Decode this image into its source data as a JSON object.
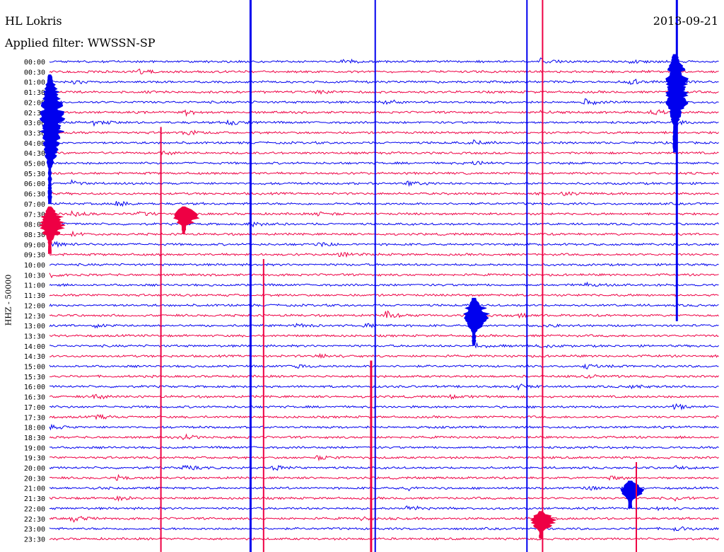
{
  "header": {
    "station": "HL Lokris",
    "date": "2013-09-21",
    "filter_label": "Applied filter: WWSSN-SP"
  },
  "channel_label": "HHZ - 50000",
  "colors": {
    "trace_a": "#0000ee",
    "trace_b": "#ee0044",
    "text": "#000000",
    "background": "#ffffff"
  },
  "chart_data": {
    "type": "line",
    "title": "",
    "xlabel": "",
    "ylabel": "HHZ - 50000",
    "row_labels": [
      "00:00",
      "00:30",
      "01:00",
      "01:30",
      "02:00",
      "02:30",
      "03:00",
      "03:30",
      "04:00",
      "04:30",
      "05:00",
      "05:30",
      "06:00",
      "06:30",
      "07:00",
      "07:30",
      "08:00",
      "08:30",
      "09:00",
      "09:30",
      "10:00",
      "10:30",
      "11:00",
      "11:30",
      "12:00",
      "12:30",
      "13:00",
      "13:30",
      "14:00",
      "14:30",
      "15:00",
      "15:30",
      "16:00",
      "16:30",
      "17:00",
      "17:30",
      "18:00",
      "18:30",
      "19:00",
      "19:30",
      "20:00",
      "20:30",
      "21:00",
      "21:30",
      "22:00",
      "22:30",
      "23:00",
      "23:30"
    ],
    "row_colors": "alternating trace_a / trace_b",
    "minutes_per_row": 30,
    "grid": false,
    "events": [
      {
        "row": 0,
        "minute": 13,
        "amp": 6
      },
      {
        "row": 0,
        "minute": 22,
        "amp": 5
      },
      {
        "row": 0,
        "minute": 26,
        "amp": 3
      },
      {
        "row": 1,
        "minute": 4,
        "amp": 3
      },
      {
        "row": 2,
        "minute": 1,
        "amp": 3
      },
      {
        "row": 2,
        "minute": 26,
        "amp": 5
      },
      {
        "row": 3,
        "minute": 12,
        "amp": 4
      },
      {
        "row": 4,
        "minute": 15,
        "amp": 4
      },
      {
        "row": 4,
        "minute": 24,
        "amp": 5
      },
      {
        "row": 5,
        "minute": 6,
        "amp": 5
      },
      {
        "row": 5,
        "minute": 27,
        "amp": 5
      },
      {
        "row": 5,
        "minute": 22,
        "amp": 3
      },
      {
        "row": 6,
        "minute": 8,
        "amp": 5
      },
      {
        "row": 6,
        "minute": 2,
        "amp": 5
      },
      {
        "row": 6,
        "minute": 28,
        "amp": 5
      },
      {
        "row": 7,
        "minute": 6,
        "amp": 4
      },
      {
        "row": 8,
        "minute": 19,
        "amp": 4
      },
      {
        "row": 9,
        "minute": 5,
        "amp": 3
      },
      {
        "row": 10,
        "minute": 19,
        "amp": 3
      },
      {
        "row": 12,
        "minute": 1,
        "amp": 4
      },
      {
        "row": 12,
        "minute": 16,
        "amp": 4
      },
      {
        "row": 13,
        "minute": 23,
        "amp": 3
      },
      {
        "row": 14,
        "minute": 3,
        "amp": 5
      },
      {
        "row": 15,
        "minute": 1,
        "amp": 5
      },
      {
        "row": 15,
        "minute": 4,
        "amp": 5
      },
      {
        "row": 15,
        "minute": 12,
        "amp": 4
      },
      {
        "row": 16,
        "minute": 0,
        "amp": 4
      },
      {
        "row": 16,
        "minute": 9,
        "amp": 4
      },
      {
        "row": 17,
        "minute": 1,
        "amp": 4
      },
      {
        "row": 18,
        "minute": 0,
        "amp": 6
      },
      {
        "row": 18,
        "minute": 12,
        "amp": 4
      },
      {
        "row": 19,
        "minute": 13,
        "amp": 4
      },
      {
        "row": 21,
        "minute": 0,
        "amp": 4
      },
      {
        "row": 22,
        "minute": 24,
        "amp": 4
      },
      {
        "row": 25,
        "minute": 15,
        "amp": 8
      },
      {
        "row": 25,
        "minute": 21,
        "amp": 3
      },
      {
        "row": 26,
        "minute": 11,
        "amp": 4
      },
      {
        "row": 26,
        "minute": 14,
        "amp": 3
      },
      {
        "row": 26,
        "minute": 22,
        "amp": 4
      },
      {
        "row": 26,
        "minute": 2,
        "amp": 3
      },
      {
        "row": 28,
        "minute": 19,
        "amp": 4
      },
      {
        "row": 28,
        "minute": 22,
        "amp": 4
      },
      {
        "row": 29,
        "minute": 12,
        "amp": 4
      },
      {
        "row": 30,
        "minute": 11,
        "amp": 4
      },
      {
        "row": 30,
        "minute": 24,
        "amp": 4
      },
      {
        "row": 31,
        "minute": 24,
        "amp": 3
      },
      {
        "row": 32,
        "minute": 21,
        "amp": 4
      },
      {
        "row": 32,
        "minute": 26,
        "amp": 3
      },
      {
        "row": 33,
        "minute": 2,
        "amp": 4
      },
      {
        "row": 33,
        "minute": 18,
        "amp": 3
      },
      {
        "row": 34,
        "minute": 28,
        "amp": 5
      },
      {
        "row": 35,
        "minute": 2,
        "amp": 4
      },
      {
        "row": 36,
        "minute": 0,
        "amp": 4
      },
      {
        "row": 37,
        "minute": 6,
        "amp": 4
      },
      {
        "row": 39,
        "minute": 12,
        "amp": 4
      },
      {
        "row": 40,
        "minute": 6,
        "amp": 5
      },
      {
        "row": 40,
        "minute": 10,
        "amp": 5
      },
      {
        "row": 40,
        "minute": 28,
        "amp": 4
      },
      {
        "row": 41,
        "minute": 3,
        "amp": 4
      },
      {
        "row": 41,
        "minute": 25,
        "amp": 3
      },
      {
        "row": 42,
        "minute": 2,
        "amp": 3
      },
      {
        "row": 42,
        "minute": 24,
        "amp": 5
      },
      {
        "row": 42,
        "minute": 16,
        "amp": 4
      },
      {
        "row": 43,
        "minute": 3,
        "amp": 4
      },
      {
        "row": 43,
        "minute": 28,
        "amp": 4
      },
      {
        "row": 44,
        "minute": 16,
        "amp": 5
      },
      {
        "row": 44,
        "minute": 27,
        "amp": 4
      },
      {
        "row": 45,
        "minute": 1,
        "amp": 5
      },
      {
        "row": 45,
        "minute": 14,
        "amp": 4
      },
      {
        "row": 46,
        "minute": 28,
        "amp": 4
      }
    ],
    "large_events": [
      {
        "row": 2,
        "minute": 0,
        "span_rows": 12
      },
      {
        "row": 15,
        "minute": 0,
        "span_rows": 4
      },
      {
        "row": 15,
        "minute": 6,
        "span_rows": 2
      },
      {
        "row": 0,
        "minute": 28,
        "span_rows": 9
      },
      {
        "row": 24,
        "minute": 19,
        "span_rows": 4
      },
      {
        "row": 45,
        "minute": 22,
        "span_rows": 2
      },
      {
        "row": 42,
        "minute": 26,
        "span_rows": 2
      }
    ],
    "clipped_traces": [
      {
        "minute": 5,
        "from_row": 7,
        "to_row": 47
      },
      {
        "minute": 9,
        "from_row": 0,
        "to_row": 47
      },
      {
        "minute": 9.6,
        "from_row": 20,
        "to_row": 47
      },
      {
        "minute": 14.6,
        "from_row": 0,
        "to_row": 47
      },
      {
        "minute": 14.4,
        "from_row": 30,
        "to_row": 47
      },
      {
        "minute": 21.4,
        "from_row": 0,
        "to_row": 47
      },
      {
        "minute": 22.1,
        "from_row": 0,
        "to_row": 47
      },
      {
        "minute": 28.1,
        "from_row": 0,
        "to_row": 25
      },
      {
        "minute": 26.3,
        "from_row": 40,
        "to_row": 47
      }
    ]
  }
}
